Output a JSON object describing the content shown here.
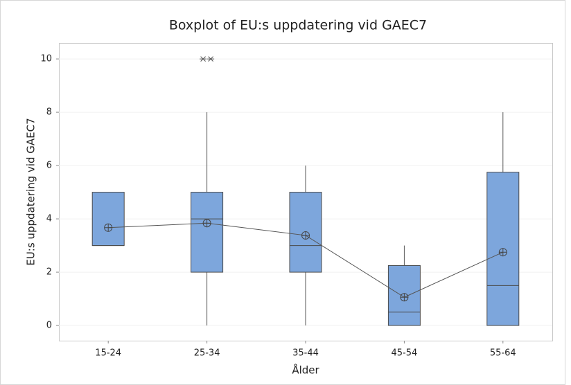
{
  "chart_data": {
    "type": "box",
    "title": "Boxplot of EU:s uppdatering vid GAEC7",
    "x_label": "Ålder",
    "y_label": "EU:s uppdatering vid GAEC7",
    "categories": [
      "15-24",
      "25-34",
      "35-44",
      "45-54",
      "55-64"
    ],
    "boxes": [
      {
        "min": 3,
        "q1": 3,
        "median": 3,
        "q3": 5,
        "max": 5,
        "mean": 3.67,
        "outliers": []
      },
      {
        "min": 0,
        "q1": 2,
        "median": 4,
        "q3": 5,
        "max": 8,
        "mean": 3.84,
        "outliers": [
          10,
          10
        ]
      },
      {
        "min": 0,
        "q1": 2,
        "median": 3,
        "q3": 5,
        "max": 6,
        "mean": 3.38,
        "outliers": []
      },
      {
        "min": 0,
        "q1": 0,
        "median": 0.5,
        "q3": 2.25,
        "max": 3,
        "mean": 1.06,
        "outliers": []
      },
      {
        "min": 0,
        "q1": 0,
        "median": 1.5,
        "q3": 5.75,
        "max": 8,
        "mean": 2.75,
        "outliers": []
      }
    ],
    "color": "#7da6dc",
    "ylim": [
      -0.57,
      10.6
    ],
    "yticks": [
      0,
      2,
      4,
      6,
      8,
      10
    ],
    "grid": true,
    "mean_connect": true
  }
}
